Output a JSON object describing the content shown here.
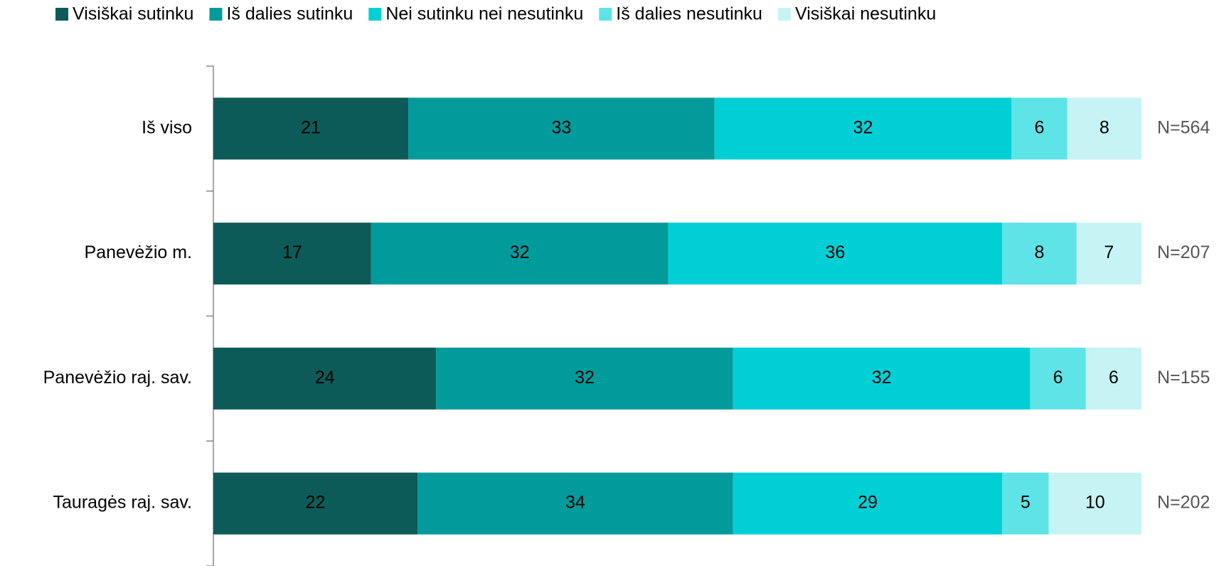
{
  "chart_data": {
    "type": "stacked-bar-horizontal",
    "categories": [
      "Iš viso",
      "Panevėžio m.",
      "Panevėžio raj. sav.",
      "Tauragės raj. sav."
    ],
    "series": [
      {
        "name": "Visiškai sutinku",
        "color": "#0d5b58",
        "values": [
          21,
          17,
          24,
          22
        ]
      },
      {
        "name": "Iš dalies sutinku",
        "color": "#019b9c",
        "values": [
          33,
          32,
          32,
          34
        ]
      },
      {
        "name": "Nei sutinku nei nesutinku",
        "color": "#00cfd6",
        "values": [
          32,
          36,
          32,
          29
        ]
      },
      {
        "name": "Iš dalies nesutinku",
        "color": "#5ee3e6",
        "values": [
          6,
          8,
          6,
          5
        ]
      },
      {
        "name": "Visiškai nesutinku",
        "color": "#c6f4f5",
        "values": [
          8,
          7,
          6,
          10
        ]
      }
    ],
    "sample_sizes": [
      "N=564",
      "N=207",
      "N=155",
      "N=202"
    ],
    "legend": "top"
  }
}
